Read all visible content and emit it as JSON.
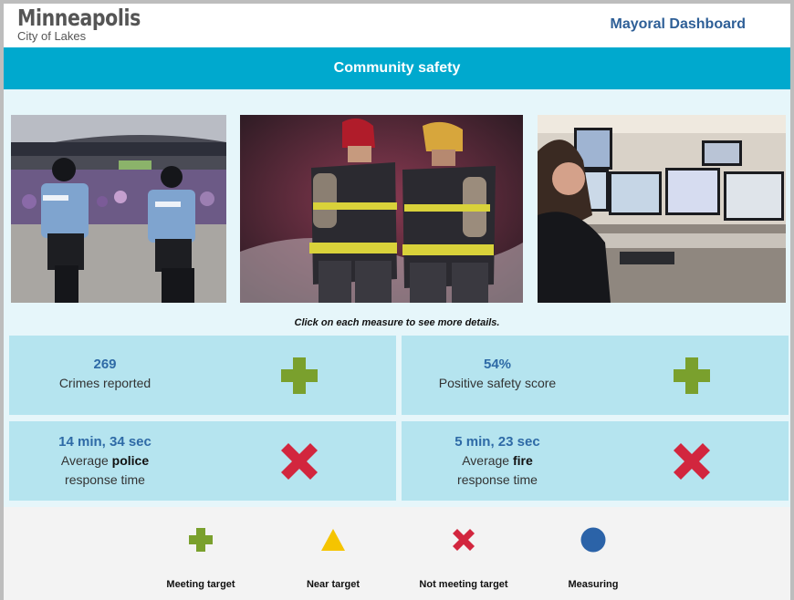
{
  "header": {
    "logo_main": "Minneapolis",
    "logo_sub": "City of Lakes",
    "dashboard_title": "Mayoral Dashboard"
  },
  "banner": {
    "title": "Community safety"
  },
  "photos": [
    {
      "name": "police-bike-officers-photo"
    },
    {
      "name": "firefighters-photo"
    },
    {
      "name": "dispatch-center-photo"
    }
  ],
  "hint": "Click on each measure to see more details.",
  "measures": [
    {
      "value": "269",
      "label": "Crimes reported",
      "status": "meeting-target"
    },
    {
      "value": "54%",
      "label": "Positive safety score",
      "status": "meeting-target"
    },
    {
      "value": "14 min, 34 sec",
      "label_prefix": "Average ",
      "label_bold": "police",
      "label_suffix": "response time",
      "status": "not-meeting-target"
    },
    {
      "value": "5 min, 23 sec",
      "label_prefix": "Average ",
      "label_bold": "fire",
      "label_suffix": "response time",
      "status": "not-meeting-target"
    }
  ],
  "legend": [
    {
      "label": "Meeting target",
      "icon": "green-plus-icon"
    },
    {
      "label": "Near target",
      "icon": "yellow-triangle-icon"
    },
    {
      "label": "Not meeting target",
      "icon": "red-x-icon"
    },
    {
      "label": "Measuring",
      "icon": "blue-circle-icon"
    }
  ],
  "colors": {
    "banner": "#00a9ce",
    "meeting_target": "#7aa02d",
    "near_target": "#f5c400",
    "not_meeting_target": "#d2263e",
    "measuring": "#2b63a8",
    "title_blue": "#2e5f97"
  }
}
